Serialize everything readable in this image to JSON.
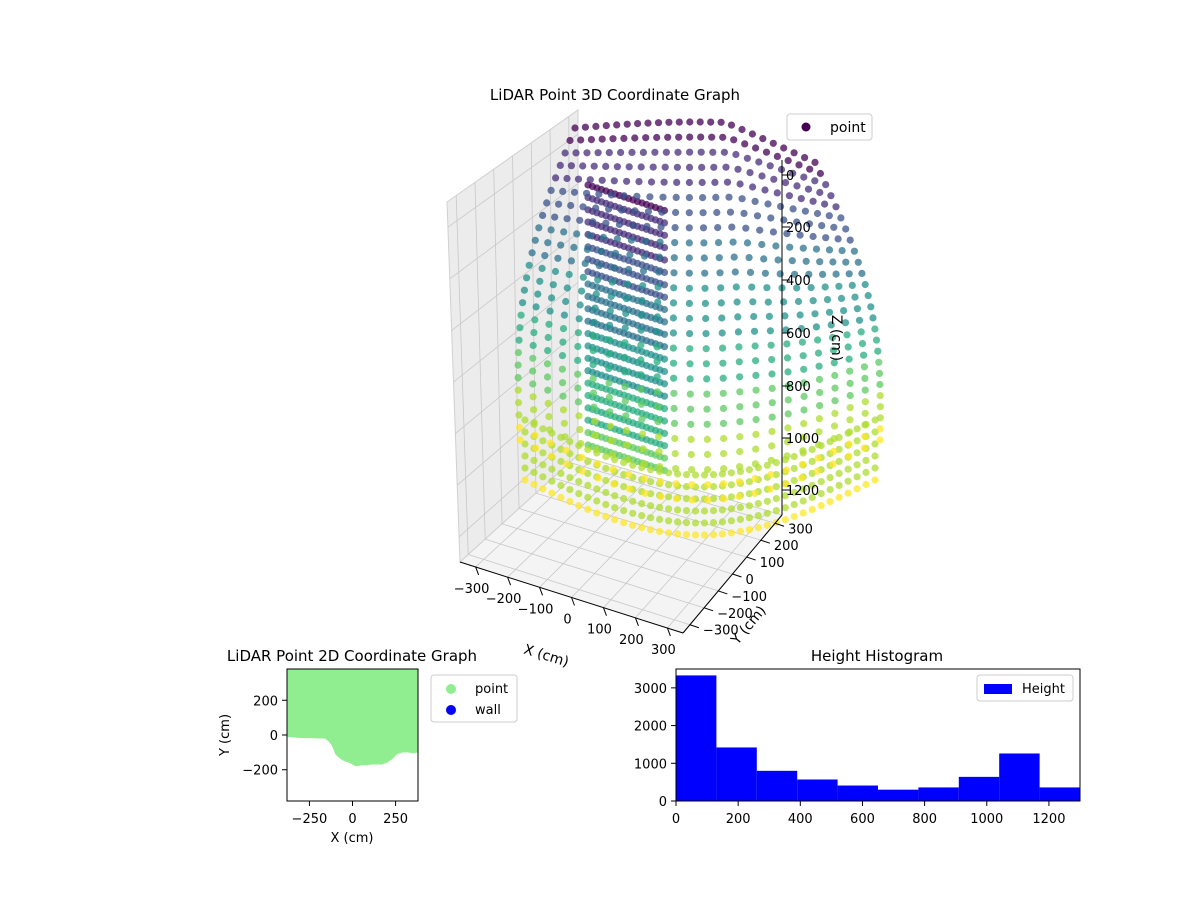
{
  "chart_data": [
    {
      "type": "scatter3d",
      "title": "LiDAR Point 3D Coordinate Graph",
      "xlabel": "X (cm)",
      "ylabel": "Y (cm)",
      "zlabel": "Z (cm)",
      "x_ticks": [
        "−300",
        "−200",
        "−100",
        "0",
        "100",
        "200",
        "300"
      ],
      "y_ticks": [
        "−300",
        "−200",
        "−100",
        "0",
        "100",
        "200",
        "300"
      ],
      "z_ticks": [
        "0",
        "200",
        "400",
        "600",
        "800",
        "1000",
        "1200"
      ],
      "xlim": [
        -380,
        380
      ],
      "ylim": [
        -380,
        380
      ],
      "zlim": [
        0,
        1300
      ],
      "z_inverted": true,
      "colormap": "viridis",
      "legend": {
        "position": "top-right",
        "entries": [
          {
            "label": "point",
            "color": "#440154"
          }
        ]
      },
      "grid": true
    },
    {
      "type": "scatter",
      "title": "LiDAR Point 2D Coordinate Graph",
      "xlabel": "X (cm)",
      "ylabel": "Y (cm)",
      "xlim": [
        -380,
        380
      ],
      "ylim": [
        -380,
        380
      ],
      "x_ticks": [
        -250,
        0,
        250
      ],
      "x_tick_labels": [
        "−250",
        "0",
        "250"
      ],
      "y_ticks": [
        -200,
        0,
        200
      ],
      "y_tick_labels": [
        "−200",
        "0",
        "200"
      ],
      "series": [
        {
          "name": "point",
          "color": "#90ee90"
        },
        {
          "name": "wall",
          "color": "#0000ff"
        }
      ],
      "boundary_x": [
        -380,
        -330,
        -280,
        -250,
        -200,
        -160,
        -140,
        -120,
        -100,
        -80,
        -50,
        -20,
        0,
        20,
        50,
        80,
        110,
        140,
        170,
        200,
        230,
        260,
        290,
        320,
        350,
        380
      ],
      "boundary_y": [
        -10,
        -15,
        -18,
        -18,
        -20,
        -20,
        -35,
        -60,
        -110,
        -130,
        -150,
        -160,
        -170,
        -180,
        -175,
        -175,
        -170,
        -170,
        -170,
        -160,
        -140,
        -110,
        -100,
        -100,
        -105,
        -100
      ],
      "legend": "outside-right",
      "grid": false
    },
    {
      "type": "histogram",
      "title": "Height Histogram",
      "xlim": [
        0,
        1300
      ],
      "ylim": [
        0,
        3500
      ],
      "x_ticks": [
        0,
        200,
        400,
        600,
        800,
        1000,
        1200
      ],
      "y_ticks": [
        0,
        1000,
        2000,
        3000
      ],
      "bin_edges": [
        0,
        130,
        260,
        390,
        520,
        650,
        780,
        910,
        1040,
        1170,
        1300
      ],
      "counts": [
        3330,
        1420,
        800,
        570,
        410,
        300,
        360,
        640,
        1260,
        360
      ],
      "series": [
        {
          "name": "Height",
          "color": "#0000ff"
        }
      ],
      "legend": "top-right",
      "grid": false
    }
  ]
}
